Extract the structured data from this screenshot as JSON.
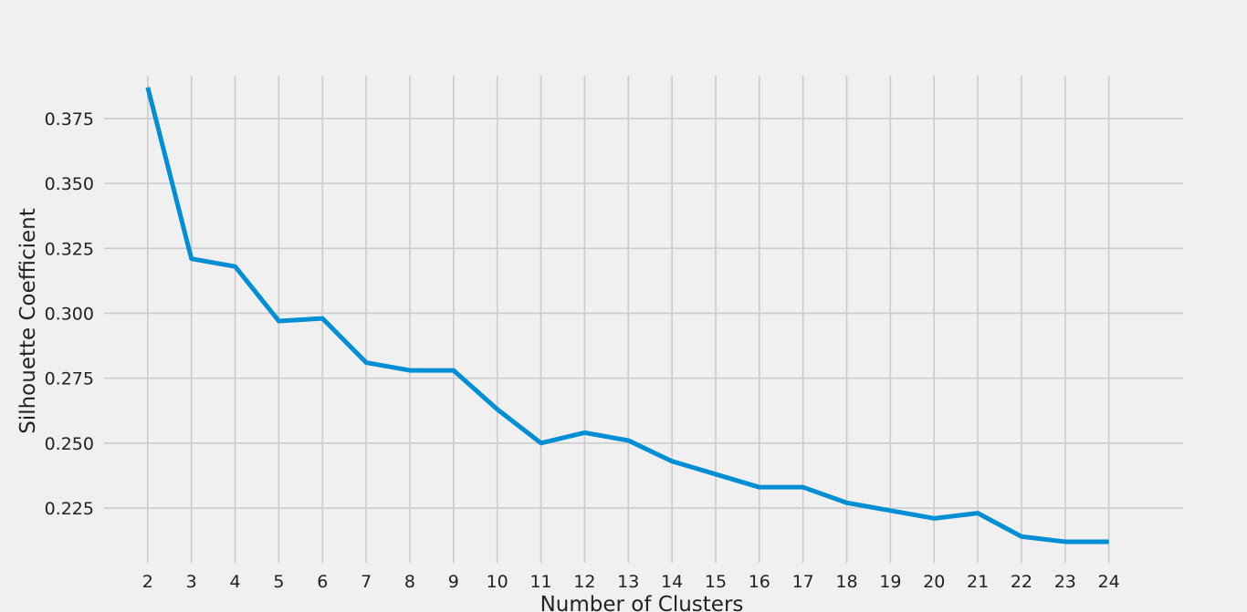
{
  "chart_data": {
    "type": "line",
    "title": "",
    "xlabel": "Number of Clusters",
    "ylabel": "Silhouette Coefficient",
    "x": [
      2,
      3,
      4,
      5,
      6,
      7,
      8,
      9,
      10,
      11,
      12,
      13,
      14,
      15,
      16,
      17,
      18,
      19,
      20,
      21,
      22,
      23,
      24
    ],
    "x_tick_labels": [
      "2",
      "3",
      "4",
      "5",
      "6",
      "7",
      "8",
      "9",
      "10",
      "11",
      "12",
      "13",
      "14",
      "15",
      "16",
      "17",
      "18",
      "19",
      "20",
      "21",
      "22",
      "23",
      "24"
    ],
    "series": [
      {
        "values": [
          0.387,
          0.321,
          0.318,
          0.297,
          0.298,
          0.281,
          0.278,
          0.278,
          0.263,
          0.25,
          0.254,
          0.251,
          0.243,
          0.238,
          0.233,
          0.233,
          0.227,
          0.224,
          0.221,
          0.223,
          0.214,
          0.212,
          0.212
        ],
        "color": "#008fd5"
      }
    ],
    "y_ticks": [
      0.225,
      0.25,
      0.275,
      0.3,
      0.325,
      0.35,
      0.375
    ],
    "y_tick_labels": [
      "0.225",
      "0.250",
      "0.275",
      "0.300",
      "0.325",
      "0.350",
      "0.375"
    ],
    "xlim": [
      1.0,
      25.7
    ],
    "ylim": [
      0.2039,
      0.3915
    ],
    "grid": true,
    "legend": "none",
    "background_color": "#f0f0f0",
    "grid_color": "#cbcbcb"
  }
}
